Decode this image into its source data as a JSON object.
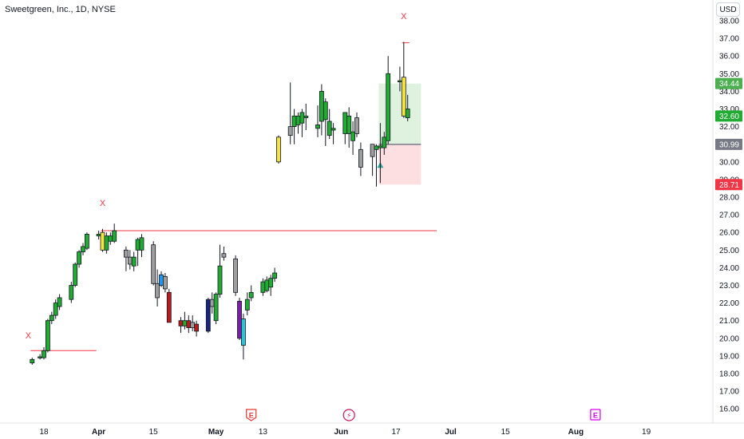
{
  "header": {
    "symbol_title": "Sweetgreen, Inc., 1D, NYSE",
    "currency": "USD"
  },
  "chart_data": {
    "type": "candlestick",
    "ylim": [
      15.6,
      38.4
    ],
    "y_ticks": [
      "16.00",
      "17.00",
      "18.00",
      "19.00",
      "20.00",
      "21.00",
      "22.00",
      "23.00",
      "24.00",
      "25.00",
      "26.00",
      "27.00",
      "28.00",
      "29.00",
      "30.00",
      "31.00",
      "32.00",
      "33.00",
      "34.00",
      "35.00",
      "36.00",
      "37.00",
      "38.00"
    ],
    "x_ticks": [
      {
        "label": "18",
        "day": 0
      },
      {
        "label": "Apr",
        "day": 14
      },
      {
        "label": "15",
        "day": 28
      },
      {
        "label": "May",
        "day": 44
      },
      {
        "label": "13",
        "day": 56
      },
      {
        "label": "Jun",
        "day": 76
      },
      {
        "label": "17",
        "day": 90
      },
      {
        "label": "Jul",
        "day": 104
      },
      {
        "label": "15",
        "day": 118
      },
      {
        "label": "Aug",
        "day": 136
      },
      {
        "label": "19",
        "day": 154
      }
    ],
    "price_labels": [
      {
        "value": "34.44",
        "color": "#4caf50"
      },
      {
        "value": "32.60",
        "color": "#22ab33"
      },
      {
        "value": "30.99",
        "color": "#787b86"
      },
      {
        "value": "28.71",
        "color": "#f23645"
      }
    ],
    "candles": [
      {
        "day": -3,
        "o": 18.6,
        "h": 18.9,
        "l": 18.5,
        "c": 18.8,
        "color": "#22ab33"
      },
      {
        "day": -1,
        "o": 18.9,
        "h": 19.1,
        "l": 18.8,
        "c": 18.95,
        "color": "#22ab33"
      },
      {
        "day": 0,
        "o": 18.9,
        "h": 19.5,
        "l": 18.8,
        "c": 19.3,
        "color": "#22ab33"
      },
      {
        "day": 1,
        "o": 19.3,
        "h": 21.1,
        "l": 19.2,
        "c": 21.0,
        "color": "#22ab33"
      },
      {
        "day": 2,
        "o": 21.0,
        "h": 21.5,
        "l": 20.8,
        "c": 21.3,
        "color": "#22ab33"
      },
      {
        "day": 3,
        "o": 21.3,
        "h": 22.2,
        "l": 21.1,
        "c": 22.0,
        "color": "#22ab33"
      },
      {
        "day": 4,
        "o": 21.8,
        "h": 22.5,
        "l": 21.6,
        "c": 22.3,
        "color": "#22ab33"
      },
      {
        "day": 7,
        "o": 22.2,
        "h": 23.2,
        "l": 22.0,
        "c": 23.0,
        "color": "#22ab33"
      },
      {
        "day": 8,
        "o": 23.0,
        "h": 24.3,
        "l": 22.9,
        "c": 24.2,
        "color": "#22ab33"
      },
      {
        "day": 9,
        "o": 24.2,
        "h": 25.0,
        "l": 24.0,
        "c": 24.9,
        "color": "#22ab33"
      },
      {
        "day": 10,
        "o": 24.9,
        "h": 25.4,
        "l": 24.7,
        "c": 25.2,
        "color": "#22ab33"
      },
      {
        "day": 11,
        "o": 25.1,
        "h": 26.0,
        "l": 25.0,
        "c": 25.9,
        "color": "#22ab33"
      },
      {
        "day": 14,
        "o": 25.9,
        "h": 26.1,
        "l": 25.6,
        "c": 25.8,
        "color": "#22ab33"
      },
      {
        "day": 15,
        "o": 25.0,
        "h": 26.2,
        "l": 24.9,
        "c": 26.0,
        "color": "#f5e342"
      },
      {
        "day": 16,
        "o": 25.0,
        "h": 26.0,
        "l": 24.8,
        "c": 25.8,
        "color": "#22ab33"
      },
      {
        "day": 17,
        "o": 25.5,
        "h": 26.0,
        "l": 25.3,
        "c": 25.8,
        "color": "#22ab33"
      },
      {
        "day": 18,
        "o": 25.5,
        "h": 26.5,
        "l": 25.4,
        "c": 26.1,
        "color": "#22ab33"
      },
      {
        "day": 21,
        "o": 25.0,
        "h": 25.2,
        "l": 23.8,
        "c": 24.6,
        "color": "#9e9e9e"
      },
      {
        "day": 22,
        "o": 24.6,
        "h": 25.0,
        "l": 23.9,
        "c": 24.2,
        "color": "#9e9e9e"
      },
      {
        "day": 23,
        "o": 24.1,
        "h": 24.9,
        "l": 23.8,
        "c": 24.6,
        "color": "#22ab33"
      },
      {
        "day": 24,
        "o": 25.0,
        "h": 25.7,
        "l": 24.1,
        "c": 25.6,
        "color": "#22ab33"
      },
      {
        "day": 25,
        "o": 25.0,
        "h": 25.9,
        "l": 24.6,
        "c": 25.7,
        "color": "#22ab33"
      },
      {
        "day": 28,
        "o": 25.3,
        "h": 25.5,
        "l": 23.0,
        "c": 23.1,
        "color": "#9e9e9e"
      },
      {
        "day": 29,
        "o": 23.1,
        "h": 23.9,
        "l": 21.8,
        "c": 22.3,
        "color": "#9e9e9e"
      },
      {
        "day": 30,
        "o": 23.0,
        "h": 23.8,
        "l": 22.9,
        "c": 23.6,
        "color": "#2196f3"
      },
      {
        "day": 31,
        "o": 23.5,
        "h": 23.7,
        "l": 22.6,
        "c": 22.8,
        "color": "#9e9e9e"
      },
      {
        "day": 32,
        "o": 22.6,
        "h": 22.8,
        "l": 20.9,
        "c": 20.9,
        "color": "#b71c1c"
      },
      {
        "day": 35,
        "o": 21.0,
        "h": 21.2,
        "l": 20.3,
        "c": 20.7,
        "color": "#b71c1c"
      },
      {
        "day": 36,
        "o": 20.7,
        "h": 21.5,
        "l": 20.5,
        "c": 21.0,
        "color": "#22ab33"
      },
      {
        "day": 37,
        "o": 21.0,
        "h": 21.3,
        "l": 20.3,
        "c": 20.6,
        "color": "#b71c1c"
      },
      {
        "day": 38,
        "o": 20.6,
        "h": 21.3,
        "l": 20.4,
        "c": 20.9,
        "color": "#9e9e9e"
      },
      {
        "day": 39,
        "o": 20.8,
        "h": 21.0,
        "l": 20.1,
        "c": 20.4,
        "color": "#b71c1c"
      },
      {
        "day": 42,
        "o": 20.4,
        "h": 22.3,
        "l": 20.3,
        "c": 22.2,
        "color": "#1a237e"
      },
      {
        "day": 43,
        "o": 22.2,
        "h": 22.6,
        "l": 21.4,
        "c": 21.8,
        "color": "#9e9e9e"
      },
      {
        "day": 44,
        "o": 21.0,
        "h": 22.6,
        "l": 20.8,
        "c": 22.5,
        "color": "#22ab33"
      },
      {
        "day": 45,
        "o": 22.5,
        "h": 25.3,
        "l": 22.3,
        "c": 24.1,
        "color": "#22ab33"
      },
      {
        "day": 46,
        "o": 24.6,
        "h": 25.2,
        "l": 24.4,
        "c": 24.8,
        "color": "#9e9e9e"
      },
      {
        "day": 49,
        "o": 24.5,
        "h": 24.7,
        "l": 22.4,
        "c": 22.6,
        "color": "#9e9e9e"
      },
      {
        "day": 50,
        "o": 22.1,
        "h": 22.3,
        "l": 19.9,
        "c": 20.0,
        "color": "#7b1fa2"
      },
      {
        "day": 51,
        "o": 19.6,
        "h": 21.4,
        "l": 18.8,
        "c": 21.1,
        "color": "#26c6da"
      },
      {
        "day": 52,
        "o": 21.6,
        "h": 22.6,
        "l": 21.3,
        "c": 22.2,
        "color": "#22ab33"
      },
      {
        "day": 53,
        "o": 22.3,
        "h": 23.0,
        "l": 22.1,
        "c": 22.6,
        "color": "#22ab33"
      },
      {
        "day": 56,
        "o": 22.6,
        "h": 23.4,
        "l": 22.4,
        "c": 23.2,
        "color": "#22ab33"
      },
      {
        "day": 57,
        "o": 22.7,
        "h": 23.5,
        "l": 22.6,
        "c": 23.3,
        "color": "#22ab33"
      },
      {
        "day": 58,
        "o": 22.9,
        "h": 23.6,
        "l": 22.4,
        "c": 23.4,
        "color": "#22ab33"
      },
      {
        "day": 59,
        "o": 23.4,
        "h": 24.0,
        "l": 23.2,
        "c": 23.7,
        "color": "#22ab33"
      },
      {
        "day": 60,
        "o": 30.0,
        "h": 31.5,
        "l": 29.9,
        "c": 31.4,
        "color": "#f5e342"
      },
      {
        "day": 63,
        "o": 31.5,
        "h": 34.5,
        "l": 31.0,
        "c": 32.0,
        "color": "#9e9e9e"
      },
      {
        "day": 64,
        "o": 32.0,
        "h": 33.0,
        "l": 31.0,
        "c": 32.6,
        "color": "#22ab33"
      },
      {
        "day": 65,
        "o": 32.1,
        "h": 32.8,
        "l": 31.6,
        "c": 32.6,
        "color": "#22ab33"
      },
      {
        "day": 66,
        "o": 32.2,
        "h": 33.0,
        "l": 31.4,
        "c": 32.8,
        "color": "#22ab33"
      },
      {
        "day": 67,
        "o": 32.5,
        "h": 33.3,
        "l": 31.8,
        "c": 32.6,
        "color": "#22ab33"
      },
      {
        "day": 70,
        "o": 31.9,
        "h": 33.2,
        "l": 31.4,
        "c": 32.1,
        "color": "#22ab33"
      },
      {
        "day": 71,
        "o": 32.3,
        "h": 34.4,
        "l": 31.5,
        "c": 34.0,
        "color": "#22ab33"
      },
      {
        "day": 72,
        "o": 32.4,
        "h": 33.6,
        "l": 30.9,
        "c": 33.4,
        "color": "#22ab33"
      },
      {
        "day": 73,
        "o": 31.5,
        "h": 33.0,
        "l": 31.3,
        "c": 32.3,
        "color": "#22ab33"
      },
      {
        "day": 74,
        "o": 31.8,
        "h": 32.2,
        "l": 31.0,
        "c": 31.9,
        "color": "#22ab33"
      },
      {
        "day": 77,
        "o": 31.6,
        "h": 32.7,
        "l": 31.0,
        "c": 32.8,
        "color": "#22ab33"
      },
      {
        "day": 78,
        "o": 31.6,
        "h": 33.1,
        "l": 30.8,
        "c": 32.6,
        "color": "#22ab33"
      },
      {
        "day": 79,
        "o": 31.2,
        "h": 32.3,
        "l": 30.4,
        "c": 31.7,
        "color": "#22ab33"
      },
      {
        "day": 80,
        "o": 32.5,
        "h": 32.8,
        "l": 31.4,
        "c": 31.6,
        "color": "#9e9e9e"
      },
      {
        "day": 81,
        "o": 30.7,
        "h": 31.1,
        "l": 29.2,
        "c": 29.7,
        "color": "#9e9e9e"
      },
      {
        "day": 84,
        "o": 30.3,
        "h": 31.0,
        "l": 29.2,
        "c": 31.0,
        "color": "#9e9e9e"
      },
      {
        "day": 85,
        "o": 30.7,
        "h": 31.0,
        "l": 28.6,
        "c": 30.9,
        "color": "#22ab33"
      },
      {
        "day": 86,
        "o": 30.8,
        "h": 32.2,
        "l": 28.8,
        "c": 30.9,
        "color": "#22ab33"
      },
      {
        "day": 87,
        "o": 30.8,
        "h": 31.7,
        "l": 30.4,
        "c": 31.4,
        "color": "#22ab33"
      },
      {
        "day": 88,
        "o": 31.2,
        "h": 36.0,
        "l": 31.0,
        "c": 35.0,
        "color": "#22ab33"
      },
      {
        "day": 91,
        "o": 34.6,
        "h": 35.4,
        "l": 34.0,
        "c": 34.6,
        "color": "#22ab33"
      },
      {
        "day": 92,
        "o": 34.8,
        "h": 36.8,
        "l": 32.5,
        "c": 32.6,
        "color": "#f5e342"
      },
      {
        "day": 93,
        "o": 32.5,
        "h": 33.8,
        "l": 32.3,
        "c": 33.0,
        "color": "#22ab33"
      }
    ],
    "levels": [
      {
        "name": "resistance-line",
        "y": 26.1,
        "day_start": 15,
        "day_end": 100,
        "color": "#f23645"
      },
      {
        "name": "support-line",
        "y": 19.3,
        "day_start": -3,
        "day_end": 13,
        "color": "#f23645"
      },
      {
        "name": "stop-line",
        "y": 36.75,
        "day_start": 92,
        "day_end": 93,
        "color": "#f23645"
      }
    ],
    "markers": [
      {
        "name": "x-marker-top",
        "text": "X",
        "day": 92,
        "y": 38.1,
        "color": "#f23645"
      },
      {
        "name": "x-marker-mid",
        "text": "X",
        "day": 15,
        "y": 27.5,
        "color": "#f23645"
      },
      {
        "name": "x-marker-left",
        "text": "X",
        "day": -4,
        "y": 20.0,
        "color": "#f23645"
      }
    ],
    "position": {
      "entry": 30.99,
      "target": 34.44,
      "stop": 28.71,
      "day_start": 86,
      "day_end": 96
    },
    "events": [
      {
        "name": "earnings-event-icon",
        "glyph": "E",
        "day": 53,
        "style": "shield",
        "color": "#e53935"
      },
      {
        "name": "dividend-event-icon",
        "glyph": "⚡",
        "day": 78,
        "style": "circle",
        "color": "#c2185b"
      },
      {
        "name": "earnings-event-icon-aug",
        "glyph": "E",
        "day": 141,
        "style": "square",
        "color": "#d500f9"
      }
    ]
  }
}
